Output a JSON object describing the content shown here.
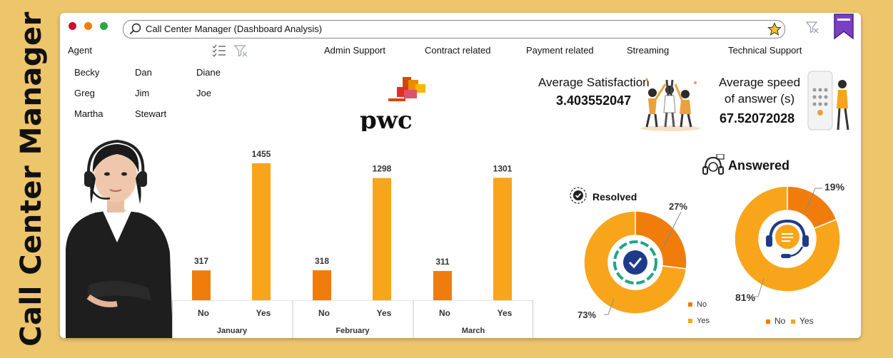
{
  "sidebar_title": "Call Center Manager",
  "colors": {
    "no": "#F07D0B",
    "yes": "#F8A51B",
    "background": "#EDC56B"
  },
  "window": {
    "dots": [
      "#C8102E",
      "#F07D0B",
      "#27A844"
    ],
    "search_text": "Call Center Manager (Dashboard Analysis)"
  },
  "agent_slicer": {
    "label": "Agent",
    "agents": [
      "Becky",
      "Dan",
      "Diane",
      "Greg",
      "Jim",
      "Joe",
      "Martha",
      "Stewart"
    ]
  },
  "categories": [
    "Admin Support",
    "Contract related",
    "Payment related",
    "Streaming",
    "Technical Support"
  ],
  "logo_text": "pwc",
  "kpis": {
    "satisfaction_label": "Average Satisfaction",
    "satisfaction_value": "3.403552047",
    "speed_label_1": "Average speed",
    "speed_label_2": "of answer (s)",
    "speed_value": "67.52072028"
  },
  "chart_data": [
    {
      "type": "bar",
      "categories": [
        "January - No",
        "January - Yes",
        "February - No",
        "February - Yes",
        "March - No",
        "March - Yes"
      ],
      "months": [
        "January",
        "February",
        "March"
      ],
      "sublabels": [
        "No",
        "Yes"
      ],
      "values": [
        317,
        1455,
        318,
        1298,
        311,
        1301
      ],
      "data_labels": [
        "317",
        "1455",
        "318",
        "1298",
        "311",
        "1301"
      ],
      "ylim": [
        0,
        1500
      ]
    },
    {
      "type": "pie",
      "title": "Resolved",
      "labels": [
        "No",
        "Yes"
      ],
      "values": [
        27,
        73
      ],
      "data_labels": [
        "27%",
        "73%"
      ],
      "legend": [
        "No",
        "Yes"
      ]
    },
    {
      "type": "pie",
      "title": "Answered",
      "labels": [
        "No",
        "Yes"
      ],
      "values": [
        19,
        81
      ],
      "data_labels": [
        "19%",
        "81%"
      ],
      "legend": [
        "No",
        "Yes"
      ]
    }
  ]
}
